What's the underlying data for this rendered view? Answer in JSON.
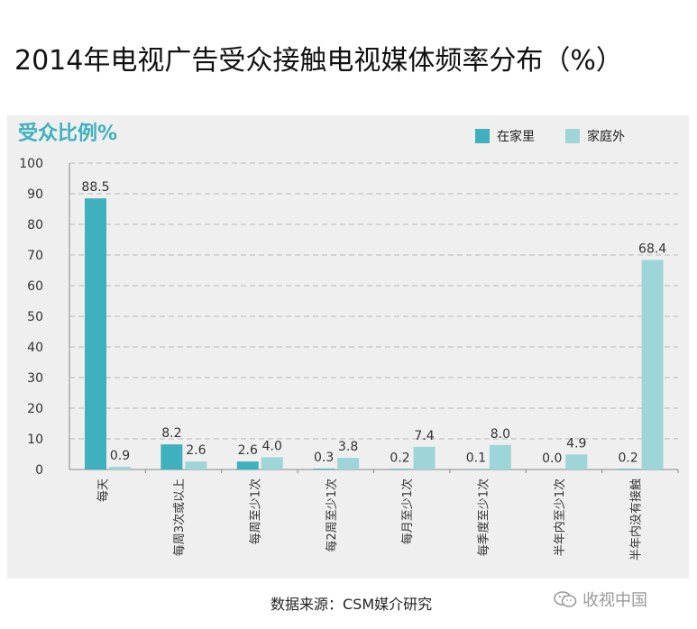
{
  "header": {
    "title": "2014年电视广告受众接触电视媒体频率分布（%）"
  },
  "chart_data": {
    "type": "bar",
    "ylabel": "受众比例%",
    "ylim": [
      0,
      100
    ],
    "yticks": [
      0,
      10,
      20,
      30,
      40,
      50,
      60,
      70,
      80,
      90,
      100
    ],
    "grid": true,
    "legend_position": "top-right",
    "categories": [
      "每天",
      "每周3次或以上",
      "每周至少1次",
      "每2周至少1次",
      "每月至少1次",
      "每季度至少1次",
      "半年内至少1次",
      "半年内没有接触"
    ],
    "series": [
      {
        "name": "在家里",
        "color": "#3fb0bd",
        "values": [
          88.5,
          8.2,
          2.6,
          0.3,
          0.2,
          0.1,
          0.0,
          0.2
        ]
      },
      {
        "name": "家庭外",
        "color": "#9ed5d9",
        "values": [
          0.9,
          2.6,
          4.0,
          3.8,
          7.4,
          8.0,
          4.9,
          68.4
        ]
      }
    ]
  },
  "footer": {
    "source": "数据来源：CSM媒介研究"
  },
  "watermark": {
    "text": "收视中国",
    "icon": "wechat-icon"
  }
}
